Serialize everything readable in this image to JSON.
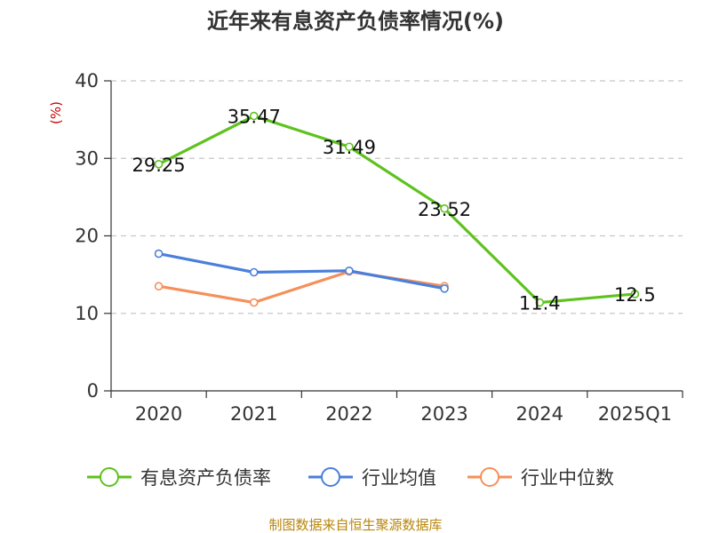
{
  "chart_data": {
    "type": "line",
    "title": "近年来有息资产负债率情况(%)",
    "ylabel": "(%)",
    "ylim": [
      0,
      40
    ],
    "yticks": [
      0,
      10,
      20,
      30,
      40
    ],
    "grid": "horizontal-dashed",
    "legend_position": "bottom",
    "categories": [
      "2020",
      "2021",
      "2022",
      "2023",
      "2024",
      "2025Q1"
    ],
    "series": [
      {
        "name": "有息资产负债率",
        "color": "#5ec21f",
        "values": [
          29.25,
          35.47,
          31.49,
          23.52,
          11.4,
          12.5
        ],
        "labels": [
          "29.25",
          "35.47",
          "31.49",
          "23.52",
          "11.4",
          "12.5"
        ]
      },
      {
        "name": "行业均值",
        "color": "#4a7fdb",
        "values": [
          17.7,
          15.3,
          15.5,
          13.2,
          null,
          null
        ]
      },
      {
        "name": "行业中位数",
        "color": "#f5905a",
        "values": [
          13.5,
          11.4,
          15.4,
          13.5,
          null,
          null
        ]
      }
    ],
    "source": "制图数据来自恒生聚源数据库"
  }
}
